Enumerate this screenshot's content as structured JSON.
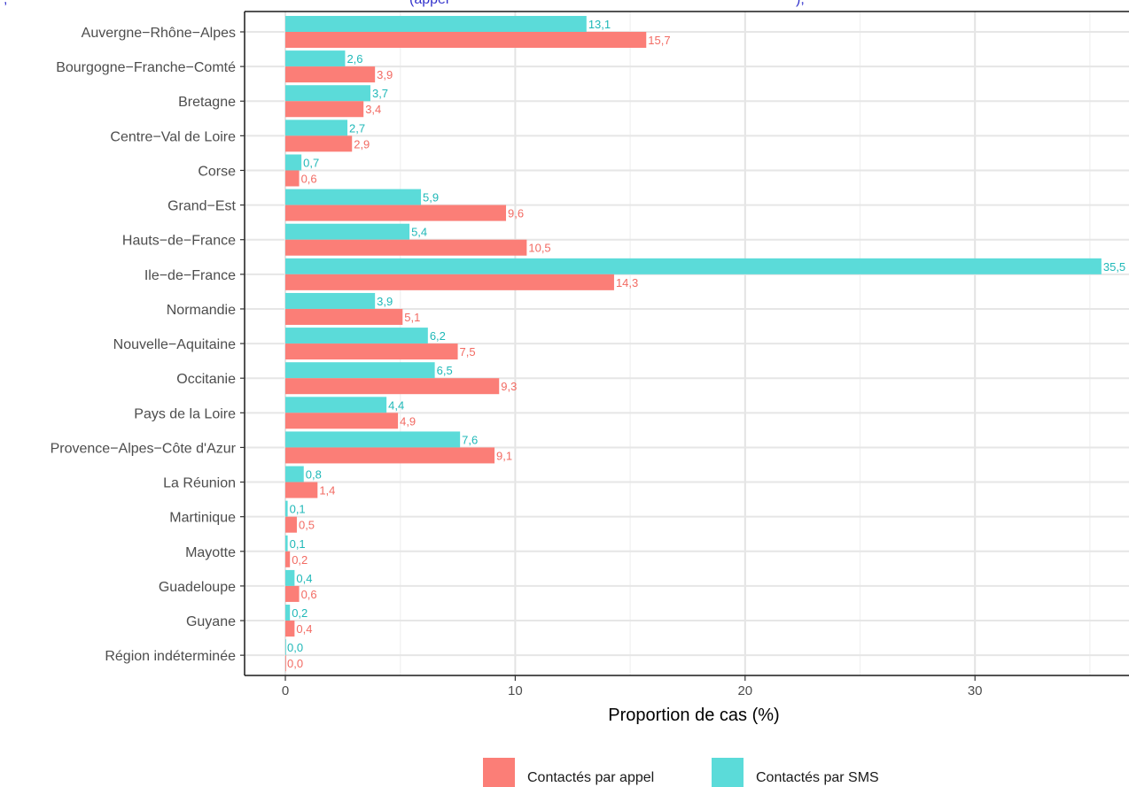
{
  "title_fragment_left": ",",
  "title_fragment_middle": "(appel",
  "title_fragment_right": "),",
  "chart_data": {
    "type": "bar",
    "orientation": "horizontal",
    "categories": [
      "Auvergne−Rhône−Alpes",
      "Bourgogne−Franche−Comté",
      "Bretagne",
      "Centre−Val de Loire",
      "Corse",
      "Grand−Est",
      "Hauts−de−France",
      "Ile−de−France",
      "Normandie",
      "Nouvelle−Aquitaine",
      "Occitanie",
      "Pays de la Loire",
      "Provence−Alpes−Côte d'Azur",
      "La Réunion",
      "Martinique",
      "Mayotte",
      "Guadeloupe",
      "Guyane",
      "Région indéterminée"
    ],
    "series": [
      {
        "name": "Contactés par SMS",
        "color": "#5bdbd9",
        "label_color": "#1fb8b8",
        "values": [
          13.1,
          2.6,
          3.7,
          2.7,
          0.7,
          5.9,
          5.4,
          35.5,
          3.9,
          6.2,
          6.5,
          4.4,
          7.6,
          0.8,
          0.1,
          0.1,
          0.4,
          0.2,
          0.0
        ],
        "labels": [
          "13,1",
          "2,6",
          "3,7",
          "2,7",
          "0,7",
          "5,9",
          "5,4",
          "35,5",
          "3,9",
          "6,2",
          "6,5",
          "4,4",
          "7,6",
          "0,8",
          "0,1",
          "0,1",
          "0,4",
          "0,2",
          "0,0"
        ]
      },
      {
        "name": "Contactés par appel",
        "color": "#fb7e77",
        "label_color": "#f26b63",
        "values": [
          15.7,
          3.9,
          3.4,
          2.9,
          0.6,
          9.6,
          10.5,
          14.3,
          5.1,
          7.5,
          9.3,
          4.9,
          9.1,
          1.4,
          0.5,
          0.2,
          0.6,
          0.4,
          0.0
        ],
        "labels": [
          "15,7",
          "3,9",
          "3,4",
          "2,9",
          "0,6",
          "9,6",
          "10,5",
          "14,3",
          "5,1",
          "7,5",
          "9,3",
          "4,9",
          "9,1",
          "1,4",
          "0,5",
          "0,2",
          "0,6",
          "0,4",
          "0,0"
        ]
      }
    ],
    "xlabel": "Proportion de cas (%)",
    "ylabel": "",
    "xlim": [
      -1.7,
      36.8
    ],
    "xticks": [
      0,
      10,
      20,
      30
    ],
    "xtick_labels": [
      "0",
      "10",
      "20",
      "30"
    ],
    "grid": true,
    "legend_position": "bottom",
    "legend_order": [
      "Contactés par appel",
      "Contactés par SMS"
    ]
  }
}
